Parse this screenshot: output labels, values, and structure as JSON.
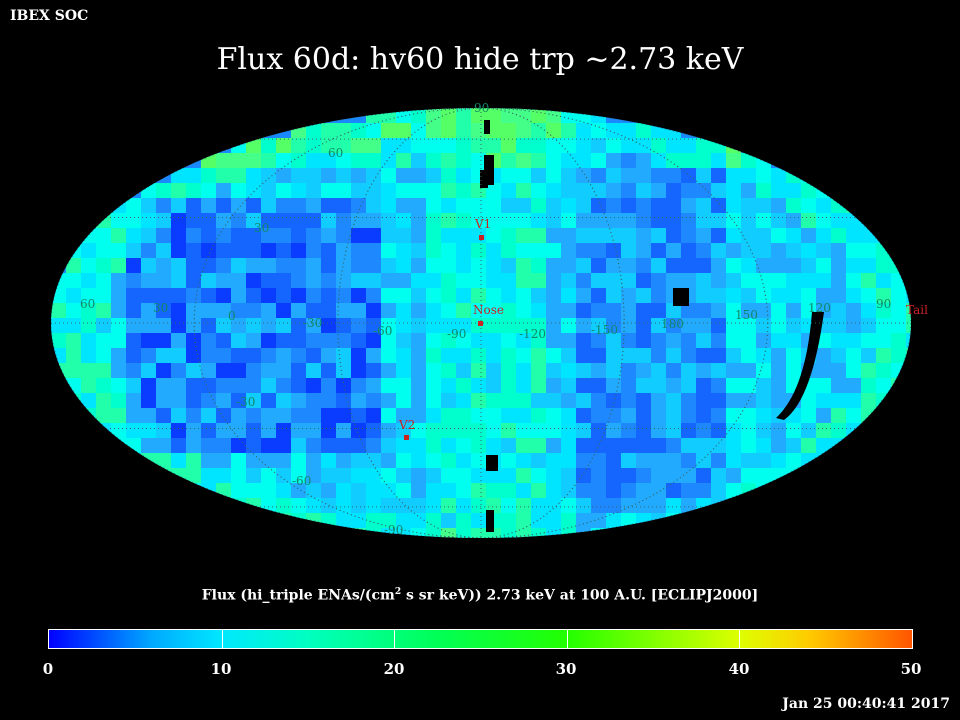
{
  "header": {
    "corner_label": "IBEX SOC",
    "title": "Flux   60d: hv60 hide trp ~2.73 keV"
  },
  "map": {
    "projection": "mollweide",
    "frame": "ECLIPJ2000",
    "longitude_labels": [
      "60",
      "30",
      "0",
      "-30",
      "-60",
      "-90",
      "-120",
      "-150",
      "180",
      "150",
      "120",
      "90"
    ],
    "latitude_labels": [
      "90",
      "60",
      "30",
      "-30",
      "-60",
      "-90"
    ],
    "markers": [
      {
        "label": "V1",
        "color": "#cc2222"
      },
      {
        "label": "Nose",
        "color": "#cc2222"
      },
      {
        "label": "V2",
        "color": "#cc2222"
      },
      {
        "label": "Tail",
        "color": "#cc2222"
      }
    ],
    "colors": {
      "grid": "#336666",
      "label_green": "#118866",
      "marker": "#cc2222"
    }
  },
  "colorbar": {
    "caption_pre": "Flux (hi_triple ENAs/(cm",
    "caption_sup": "2",
    "caption_post": " s sr keV))  2.73 keV at 100 A.U. [ECLIPJ2000]",
    "min": 0,
    "max": 50,
    "tick_labels": [
      "0",
      "10",
      "20",
      "30",
      "40",
      "50"
    ]
  },
  "footer": {
    "timestamp": "Jan 25 00:40:41 2017"
  }
}
